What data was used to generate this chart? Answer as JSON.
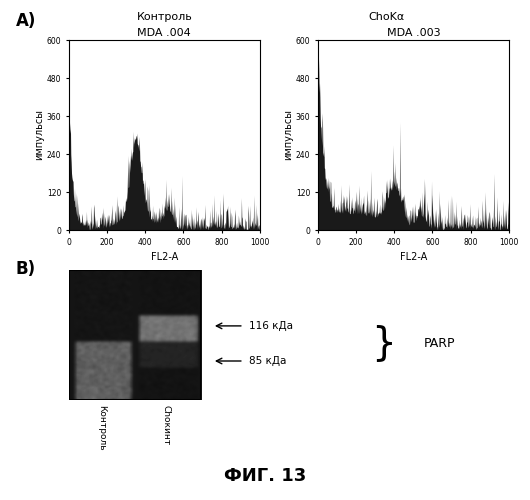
{
  "panel_a_label": "A)",
  "panel_b_label": "B)",
  "fig_label": "ФИГ. 13",
  "plot1_title": "MDA .004",
  "plot2_title": "MDA .003",
  "label1": "Контроль",
  "label2": "ChoKα",
  "ylabel": "импульсы",
  "xlabel": "FL2-A",
  "yticks": [
    0,
    120,
    240,
    360,
    480,
    600
  ],
  "xticks": [
    0,
    200,
    400,
    600,
    800,
    1000
  ],
  "xlim": [
    0,
    1000
  ],
  "ylim": [
    0,
    600
  ],
  "band_label1": "116 кДа",
  "band_label2": "85 кДа",
  "parp_label": "PARP",
  "col_label1": "Контроль",
  "col_label2": "Choкинт",
  "bg_color": "#ffffff",
  "plot_bg": "#ffffff",
  "hist_color": "#1a1a1a"
}
